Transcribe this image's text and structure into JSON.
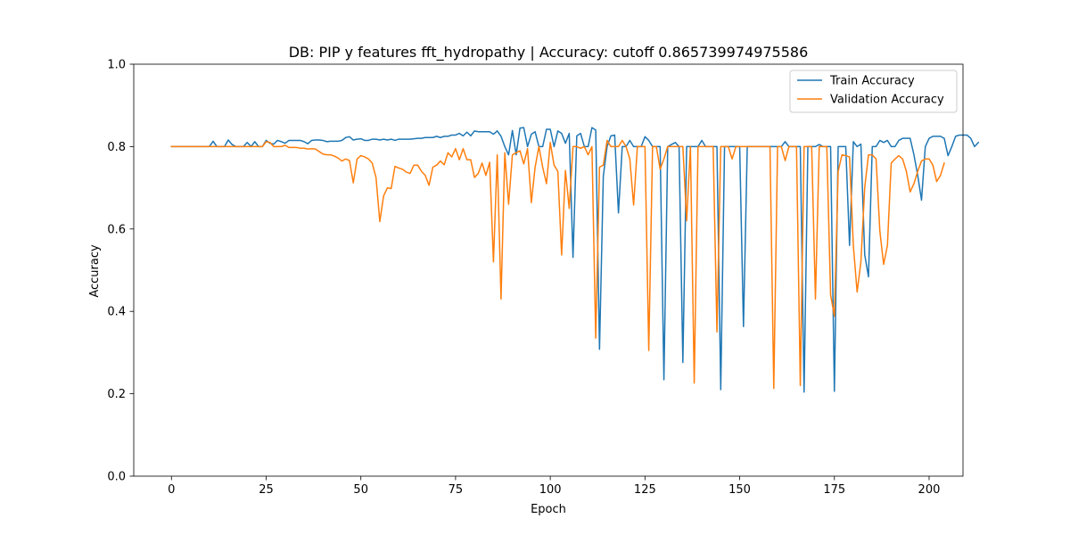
{
  "chart_data": {
    "type": "line",
    "title": "DB: PIP y features fft_hydropathy | Accuracy: cutoff 0.865739974975586",
    "xlabel": "Epoch",
    "ylabel": "Accuracy",
    "xlim": [
      -9.95,
      208.95
    ],
    "ylim": [
      0.0,
      1.0
    ],
    "xticks": [
      0,
      25,
      50,
      75,
      100,
      125,
      150,
      175,
      200
    ],
    "xtick_labels": [
      "0",
      "25",
      "50",
      "75",
      "100",
      "125",
      "150",
      "175",
      "200"
    ],
    "yticks": [
      0.0,
      0.2,
      0.4,
      0.6,
      0.8,
      1.0
    ],
    "ytick_labels": [
      "0.0",
      "0.2",
      "0.4",
      "0.6",
      "0.8",
      "1.0"
    ],
    "grid": false,
    "legend_position": "upper right",
    "series": [
      {
        "name": "Train Accuracy",
        "color": "#1f77b4",
        "values": [
          0.8,
          0.8,
          0.8,
          0.8,
          0.8,
          0.8,
          0.8,
          0.8,
          0.8,
          0.8,
          0.8,
          0.813,
          0.8,
          0.8,
          0.8,
          0.816,
          0.805,
          0.8,
          0.8,
          0.8,
          0.81,
          0.8,
          0.812,
          0.8,
          0.8,
          0.815,
          0.808,
          0.806,
          0.815,
          0.812,
          0.808,
          0.815,
          0.815,
          0.815,
          0.815,
          0.812,
          0.807,
          0.815,
          0.816,
          0.816,
          0.815,
          0.812,
          0.813,
          0.813,
          0.813,
          0.815,
          0.822,
          0.824,
          0.816,
          0.818,
          0.819,
          0.815,
          0.815,
          0.818,
          0.818,
          0.816,
          0.818,
          0.816,
          0.818,
          0.815,
          0.818,
          0.818,
          0.818,
          0.818,
          0.819,
          0.82,
          0.82,
          0.822,
          0.822,
          0.822,
          0.825,
          0.822,
          0.825,
          0.825,
          0.828,
          0.828,
          0.832,
          0.826,
          0.835,
          0.826,
          0.838,
          0.836,
          0.836,
          0.836,
          0.836,
          0.83,
          0.838,
          0.825,
          0.8,
          0.78,
          0.839,
          0.78,
          0.845,
          0.846,
          0.8,
          0.83,
          0.836,
          0.8,
          0.8,
          0.842,
          0.842,
          0.8,
          0.838,
          0.832,
          0.808,
          0.832,
          0.531,
          0.826,
          0.832,
          0.8,
          0.8,
          0.846,
          0.84,
          0.308,
          0.728,
          0.8,
          0.826,
          0.828,
          0.639,
          0.8,
          0.8,
          0.815,
          0.8,
          0.8,
          0.8,
          0.824,
          0.815,
          0.8,
          0.8,
          0.8,
          0.234,
          0.8,
          0.805,
          0.81,
          0.8,
          0.276,
          0.8,
          0.8,
          0.8,
          0.8,
          0.815,
          0.8,
          0.8,
          0.8,
          0.8,
          0.21,
          0.8,
          0.8,
          0.8,
          0.8,
          0.8,
          0.363,
          0.8,
          0.8,
          0.8,
          0.8,
          0.8,
          0.8,
          0.8,
          0.8,
          0.8,
          0.8,
          0.812,
          0.8,
          0.8,
          0.8,
          0.8,
          0.204,
          0.8,
          0.8,
          0.8,
          0.805,
          0.8,
          0.8,
          0.8,
          0.206,
          0.8,
          0.8,
          0.8,
          0.56,
          0.812,
          0.8,
          0.806,
          0.538,
          0.484,
          0.8,
          0.8,
          0.815,
          0.81,
          0.815,
          0.8,
          0.8,
          0.815,
          0.82,
          0.82,
          0.82,
          0.78,
          0.73,
          0.67,
          0.8,
          0.82,
          0.825,
          0.825,
          0.825,
          0.82,
          0.778,
          0.8,
          0.825,
          0.828,
          0.828,
          0.828,
          0.82,
          0.8,
          0.81
        ]
      },
      {
        "name": "Validation Accuracy",
        "color": "#ff7f0e",
        "values": [
          0.8,
          0.8,
          0.8,
          0.8,
          0.8,
          0.8,
          0.8,
          0.8,
          0.8,
          0.8,
          0.8,
          0.8,
          0.8,
          0.8,
          0.8,
          0.8,
          0.8,
          0.8,
          0.8,
          0.8,
          0.8,
          0.8,
          0.8,
          0.8,
          0.8,
          0.812,
          0.81,
          0.8,
          0.8,
          0.8,
          0.803,
          0.798,
          0.798,
          0.798,
          0.796,
          0.796,
          0.794,
          0.795,
          0.794,
          0.788,
          0.782,
          0.78,
          0.78,
          0.777,
          0.772,
          0.765,
          0.77,
          0.766,
          0.712,
          0.77,
          0.778,
          0.775,
          0.77,
          0.76,
          0.725,
          0.618,
          0.68,
          0.7,
          0.698,
          0.752,
          0.748,
          0.745,
          0.738,
          0.735,
          0.755,
          0.755,
          0.74,
          0.73,
          0.706,
          0.75,
          0.755,
          0.765,
          0.756,
          0.785,
          0.775,
          0.795,
          0.768,
          0.795,
          0.768,
          0.768,
          0.725,
          0.735,
          0.76,
          0.73,
          0.762,
          0.52,
          0.78,
          0.43,
          0.785,
          0.66,
          0.78,
          0.785,
          0.79,
          0.758,
          0.795,
          0.664,
          0.75,
          0.8,
          0.75,
          0.71,
          0.81,
          0.755,
          0.74,
          0.537,
          0.742,
          0.65,
          0.8,
          0.8,
          0.796,
          0.8,
          0.78,
          0.8,
          0.335,
          0.75,
          0.755,
          0.815,
          0.8,
          0.8,
          0.8,
          0.815,
          0.8,
          0.77,
          0.658,
          0.8,
          0.8,
          0.8,
          0.305,
          0.8,
          0.8,
          0.745,
          0.77,
          0.8,
          0.8,
          0.8,
          0.8,
          0.8,
          0.62,
          0.8,
          0.226,
          0.8,
          0.8,
          0.8,
          0.8,
          0.8,
          0.35,
          0.8,
          0.8,
          0.8,
          0.77,
          0.8,
          0.8,
          0.8,
          0.8,
          0.8,
          0.8,
          0.8,
          0.8,
          0.8,
          0.8,
          0.213,
          0.8,
          0.8,
          0.766,
          0.8,
          0.8,
          0.8,
          0.22,
          0.8,
          0.8,
          0.8,
          0.43,
          0.8,
          0.8,
          0.8,
          0.44,
          0.388,
          0.74,
          0.78,
          0.778,
          0.775,
          0.56,
          0.447,
          0.52,
          0.7,
          0.78,
          0.78,
          0.77,
          0.595,
          0.514,
          0.56,
          0.76,
          0.77,
          0.778,
          0.77,
          0.74,
          0.69,
          0.71,
          0.74,
          0.765,
          0.77,
          0.77,
          0.755,
          0.715,
          0.73,
          0.76
        ]
      }
    ]
  }
}
